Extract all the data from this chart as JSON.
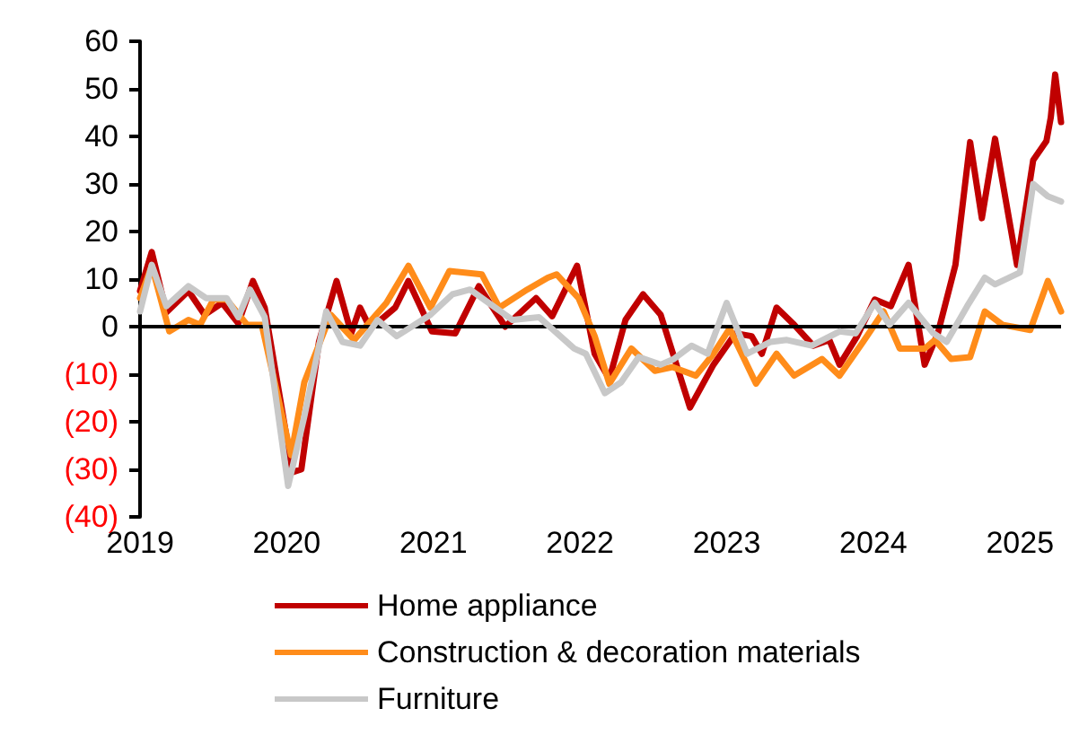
{
  "chart_data": {
    "type": "line",
    "xlim": [
      2019,
      2025.28
    ],
    "xticks": [
      2019,
      2020,
      2021,
      2022,
      2023,
      2024,
      2025
    ],
    "ylim": [
      -40,
      60
    ],
    "yticks": [
      {
        "value": -40,
        "label": "(40)"
      },
      {
        "value": -30,
        "label": "(30)"
      },
      {
        "value": -20,
        "label": "(20)"
      },
      {
        "value": -10,
        "label": "(10)"
      },
      0,
      10,
      20,
      30,
      40,
      50,
      60
    ],
    "series": [
      {
        "name": "Home appliance",
        "color": "#c00000",
        "x": [
          2019.0,
          2019.08,
          2019.18,
          2019.33,
          2019.44,
          2019.56,
          2019.67,
          2019.77,
          2019.85,
          2020.04,
          2020.1,
          2020.22,
          2020.34,
          2020.44,
          2020.5,
          2020.57,
          2020.74,
          2020.83,
          2020.99,
          2021.15,
          2021.31,
          2021.49,
          2021.7,
          2021.81,
          2021.98,
          2022.1,
          2022.2,
          2022.31,
          2022.43,
          2022.55,
          2022.75,
          2022.91,
          2023.06,
          2023.17,
          2023.24,
          2023.34,
          2023.46,
          2023.59,
          2023.7,
          2023.77,
          2023.89,
          2024.01,
          2024.12,
          2024.24,
          2024.35,
          2024.44,
          2024.56,
          2024.66,
          2024.74,
          2024.83,
          2024.98,
          2025.09,
          2025.18,
          2025.21,
          2025.24,
          2025.28
        ],
        "values": [
          7.5,
          15.7,
          3,
          7.5,
          2.5,
          5,
          0.7,
          9.6,
          4,
          -30.6,
          -30,
          -3.2,
          9.6,
          -1.4,
          4,
          -0.4,
          4,
          9.6,
          -1,
          -1.4,
          8.5,
          0,
          6,
          2.2,
          12.8,
          -5.7,
          -11,
          1.4,
          6.8,
          2.5,
          -17,
          -8,
          -1.4,
          -2,
          -5.7,
          4,
          0.4,
          -4,
          -2.8,
          -8,
          -2,
          5.7,
          4.3,
          13,
          -8,
          -1.4,
          13,
          38.8,
          22.8,
          39.5,
          13,
          35,
          39,
          44,
          53,
          43
        ]
      },
      {
        "name": "Construction & decoration materials",
        "color": "#ff8c1a",
        "x": [
          2019.0,
          2019.08,
          2019.2,
          2019.33,
          2019.41,
          2019.5,
          2019.59,
          2019.73,
          2019.83,
          2020.03,
          2020.12,
          2020.3,
          2020.46,
          2020.68,
          2020.83,
          2020.98,
          2021.11,
          2021.33,
          2021.45,
          2021.64,
          2021.78,
          2021.84,
          2021.99,
          2022.1,
          2022.2,
          2022.35,
          2022.51,
          2022.63,
          2022.79,
          2022.91,
          2023.02,
          2023.2,
          2023.34,
          2023.46,
          2023.65,
          2023.77,
          2023.93,
          2024.07,
          2024.18,
          2024.35,
          2024.42,
          2024.53,
          2024.66,
          2024.76,
          2024.88,
          2025.07,
          2025.19,
          2025.28
        ],
        "values": [
          6,
          12.8,
          -1,
          1.4,
          0.4,
          5.7,
          5.7,
          0.4,
          0.4,
          -27,
          -11.7,
          2.5,
          -2.8,
          5,
          12.8,
          4,
          11.7,
          11,
          4,
          7.8,
          10.3,
          11,
          6,
          -2,
          -12,
          -4.6,
          -9.3,
          -8.5,
          -10.3,
          -5.7,
          -0.4,
          -12,
          -5.7,
          -10.3,
          -6.8,
          -10.3,
          -3.2,
          3.2,
          -4.6,
          -4.6,
          -2.8,
          -6.8,
          -6.4,
          3.2,
          0.4,
          -0.7,
          9.6,
          3.2
        ]
      },
      {
        "name": "Furniture",
        "color": "#c8c8c8",
        "x": [
          2019.0,
          2019.08,
          2019.18,
          2019.33,
          2019.45,
          2019.59,
          2019.67,
          2019.75,
          2019.85,
          2020.01,
          2020.12,
          2020.27,
          2020.38,
          2020.5,
          2020.62,
          2020.75,
          2020.98,
          2021.13,
          2021.25,
          2021.54,
          2021.72,
          2021.96,
          2022.04,
          2022.17,
          2022.28,
          2022.4,
          2022.55,
          2022.64,
          2022.76,
          2022.87,
          2023.0,
          2023.14,
          2023.3,
          2023.41,
          2023.58,
          2023.77,
          2023.88,
          2024.01,
          2024.11,
          2024.24,
          2024.41,
          2024.5,
          2024.64,
          2024.76,
          2024.83,
          2025.0,
          2025.09,
          2025.19,
          2025.28
        ],
        "values": [
          3.2,
          13,
          4.3,
          8.5,
          6,
          6,
          2,
          7.8,
          2,
          -33.5,
          -18.9,
          3.2,
          -3.2,
          -4,
          1.4,
          -2,
          2.5,
          6.8,
          7.8,
          1.4,
          2,
          -4.6,
          -5.7,
          -14,
          -11.7,
          -6.4,
          -8,
          -6.8,
          -4,
          -5.7,
          5,
          -5.7,
          -3.2,
          -2.8,
          -4,
          -1,
          -1.4,
          5,
          0.4,
          5,
          -1.4,
          -3.2,
          4.3,
          10.3,
          8.9,
          11.4,
          30,
          27.4,
          26.3
        ]
      }
    ],
    "ref_lines": [
      {
        "axis": "y",
        "value": 0,
        "color": "#000000"
      }
    ],
    "legend": "bottom",
    "grid": false,
    "marker": "none",
    "line_style": "solid"
  }
}
